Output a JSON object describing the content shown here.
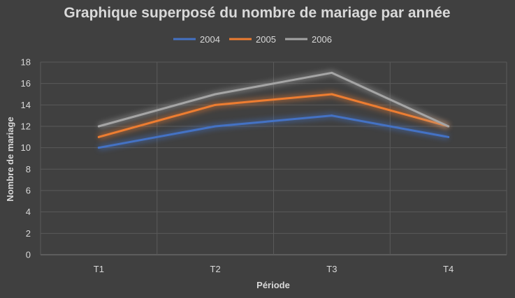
{
  "chart_data": {
    "type": "line",
    "title": "Graphique superposé du nombre de mariage par année",
    "xlabel": "Période",
    "ylabel": "Nombre de mariage",
    "categories": [
      "T1",
      "T2",
      "T3",
      "T4"
    ],
    "series": [
      {
        "name": "2004",
        "color": "#4472c4",
        "values": [
          10,
          12,
          13,
          11
        ]
      },
      {
        "name": "2005",
        "color": "#ed7d31",
        "values": [
          11,
          14,
          15,
          12
        ]
      },
      {
        "name": "2006",
        "color": "#a5a5a5",
        "values": [
          12,
          15,
          17,
          12
        ]
      }
    ],
    "ylim": [
      0,
      18
    ],
    "yticks": [
      0,
      2,
      4,
      6,
      8,
      10,
      12,
      14,
      16,
      18
    ],
    "grid": true,
    "legend_position": "top"
  }
}
